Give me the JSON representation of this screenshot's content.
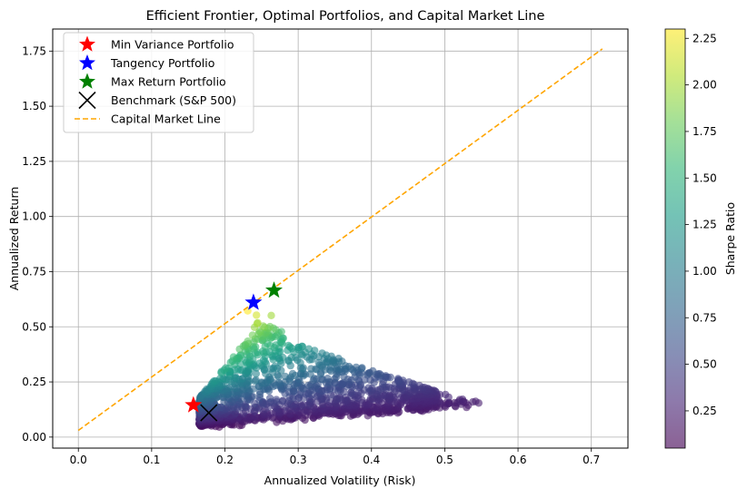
{
  "chart_data": {
    "type": "scatter",
    "title": "Efficient Frontier, Optimal Portfolios, and Capital Market Line",
    "xlabel": "Annualized Volatility (Risk)",
    "ylabel": "Annualized Return",
    "xlim": [
      -0.035,
      0.75
    ],
    "ylim": [
      -0.05,
      1.85
    ],
    "xticks": [
      0.0,
      0.1,
      0.2,
      0.3,
      0.4,
      0.5,
      0.6,
      0.7
    ],
    "xtick_labels": [
      "0.0",
      "0.1",
      "0.2",
      "0.3",
      "0.4",
      "0.5",
      "0.6",
      "0.7"
    ],
    "yticks": [
      0.0,
      0.25,
      0.5,
      0.75,
      1.0,
      1.25,
      1.5,
      1.75
    ],
    "ytick_labels": [
      "0.00",
      "0.25",
      "0.50",
      "0.75",
      "1.00",
      "1.25",
      "1.50",
      "1.75"
    ],
    "grid": true,
    "legend_position": "top-left",
    "colorbar": {
      "label": "Sharpe Ratio",
      "range": [
        0.05,
        2.3
      ],
      "ticks": [
        0.25,
        0.5,
        0.75,
        1.0,
        1.25,
        1.5,
        1.75,
        2.0,
        2.25
      ],
      "tick_labels": [
        "0.25",
        "0.50",
        "0.75",
        "1.00",
        "1.25",
        "1.50",
        "1.75",
        "2.00",
        "2.25"
      ],
      "colormap": "viridis",
      "alpha": 0.6
    },
    "portfolios_cloud": {
      "description_points": [
        {
          "x": 0.16,
          "y": 0.155
        },
        {
          "x": 0.2,
          "y": 0.06
        },
        {
          "x": 0.25,
          "y": 0.4
        },
        {
          "x": 0.28,
          "y": 0.55
        },
        {
          "x": 0.32,
          "y": 0.45
        },
        {
          "x": 0.4,
          "y": 0.26
        },
        {
          "x": 0.47,
          "y": 0.18
        },
        {
          "x": 0.55,
          "y": 0.17
        },
        {
          "x": 0.52,
          "y": 0.17
        }
      ]
    },
    "markers": [
      {
        "name": "Min Variance Portfolio",
        "x": 0.157,
        "y": 0.145,
        "symbol": "star",
        "color": "#ff0000"
      },
      {
        "name": "Tangency Portfolio",
        "x": 0.239,
        "y": 0.61,
        "symbol": "star",
        "color": "#0000ff"
      },
      {
        "name": "Max Return Portfolio",
        "x": 0.267,
        "y": 0.665,
        "symbol": "star",
        "color": "#008000"
      },
      {
        "name": "Benchmark (S&P 500)",
        "x": 0.178,
        "y": 0.11,
        "symbol": "x",
        "color": "#000000"
      }
    ],
    "lines": [
      {
        "name": "Capital Market Line",
        "x": [
          0.0,
          0.715
        ],
        "y": [
          0.03,
          1.76
        ],
        "style": "dashed",
        "color": "#ffa500"
      }
    ],
    "legend": [
      {
        "label": "Min Variance Portfolio",
        "symbol": "star",
        "color": "#ff0000"
      },
      {
        "label": "Tangency Portfolio",
        "symbol": "star",
        "color": "#0000ff"
      },
      {
        "label": "Max Return Portfolio",
        "symbol": "star",
        "color": "#008000"
      },
      {
        "label": "Benchmark (S&P 500)",
        "symbol": "x",
        "color": "#000000"
      },
      {
        "label": "Capital Market Line",
        "symbol": "dashed-line",
        "color": "#ffa500"
      }
    ]
  }
}
